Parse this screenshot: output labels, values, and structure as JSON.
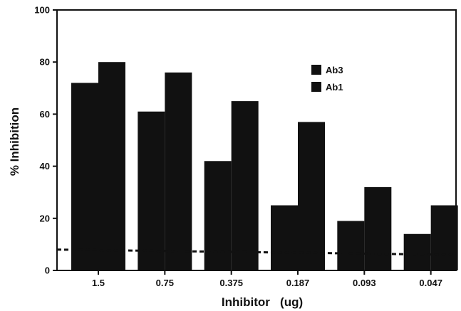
{
  "chart_data": {
    "type": "bar",
    "title": "",
    "xlabel": "Inhibitor   (ug)",
    "ylabel": "% Inhibition",
    "categories": [
      "1.5",
      "0.75",
      "0.375",
      "0.187",
      "0.093",
      "0.047"
    ],
    "series": [
      {
        "name": "Ab3",
        "values": [
          72,
          61,
          42,
          25,
          19,
          14
        ],
        "color": "#111111"
      },
      {
        "name": "Ab1",
        "values": [
          80,
          76,
          65,
          57,
          32,
          25
        ],
        "color": "#111111"
      }
    ],
    "ylim": [
      0,
      100
    ],
    "yticks": [
      "0",
      "20",
      "40",
      "60",
      "80",
      "100"
    ],
    "baseline": {
      "style": "dashed",
      "values": [
        8,
        6
      ]
    },
    "legend_position": "top-right",
    "grid": false
  }
}
